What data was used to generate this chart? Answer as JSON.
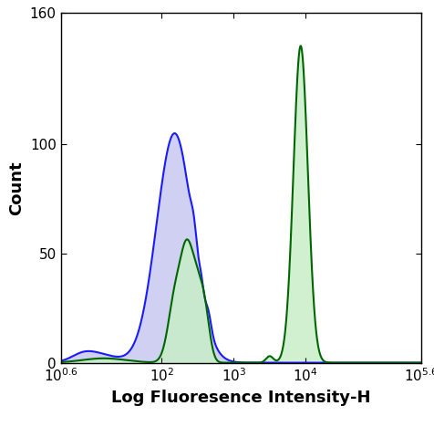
{
  "title": "",
  "xlabel": "Log Fluoresence Intensity-H",
  "ylabel": "Count",
  "xlim_log": [
    0.6,
    5.6
  ],
  "ylim": [
    0,
    160
  ],
  "yticks": [
    0,
    50,
    100,
    160
  ],
  "xtick_positions": [
    0.6,
    2,
    3,
    4,
    5.6
  ],
  "blue_line_color": "#1a1aff",
  "blue_fill_color": "#c8c8f0",
  "green_line_color": "#006600",
  "green_fill_color": "#c8eec8",
  "blue_fill_alpha": 0.85,
  "green_fill_alpha": 0.85,
  "background_color": "#ffffff",
  "tick_labelsize": 11,
  "label_fontsize": 13
}
